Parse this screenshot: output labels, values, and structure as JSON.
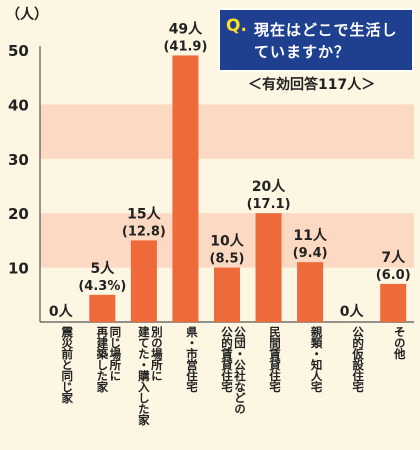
{
  "title": {
    "q_mark": "Q.",
    "question": "現在はどこで生活していますか？",
    "subtitle": "＜有効回答117人＞"
  },
  "colors": {
    "bar": "#ef6a3a",
    "band": "#fcd9c2",
    "background": "#fdf6e3",
    "title_bg": "#1f3f8f"
  },
  "chart_data": {
    "type": "bar",
    "title": "現在はどこで生活していますか？",
    "subtitle": "＜有効回答117人＞",
    "ylabel": "（人）",
    "ylim": [
      0,
      50
    ],
    "yticks": [
      "10",
      "20",
      "30",
      "40",
      "50"
    ],
    "categories": [
      "震災前と同じ家",
      "同じ場所に再建築した家",
      "別の場所に建てた・購入した家",
      "県・市営住宅",
      "公団・公社などの公的賃貸住宅",
      "民間賃貸住宅",
      "親類・知人宅",
      "公的仮設住宅",
      "その他"
    ],
    "category_lines": [
      [
        "震災前と同じ家"
      ],
      [
        "同じ場所に",
        "再建築した家"
      ],
      [
        "別の場所に",
        "建てた・購入した家"
      ],
      [
        "県・市営住宅"
      ],
      [
        "公団・公社などの",
        "公的賃貸住宅"
      ],
      [
        "民間賃貸住宅"
      ],
      [
        "親類・知人宅"
      ],
      [
        "公的仮設住宅"
      ],
      [
        "その他"
      ]
    ],
    "values": [
      0,
      5,
      15,
      49,
      10,
      20,
      11,
      0,
      7
    ],
    "count_labels": [
      "0人",
      "5人",
      "15人",
      "49人",
      "10人",
      "20人",
      "11人",
      "0人",
      "7人"
    ],
    "pct_labels": [
      "",
      "(4.3%)",
      "(12.8)",
      "(41.9)",
      "(8.5)",
      "(17.1)",
      "(9.4)",
      "",
      "(6.0)"
    ]
  }
}
